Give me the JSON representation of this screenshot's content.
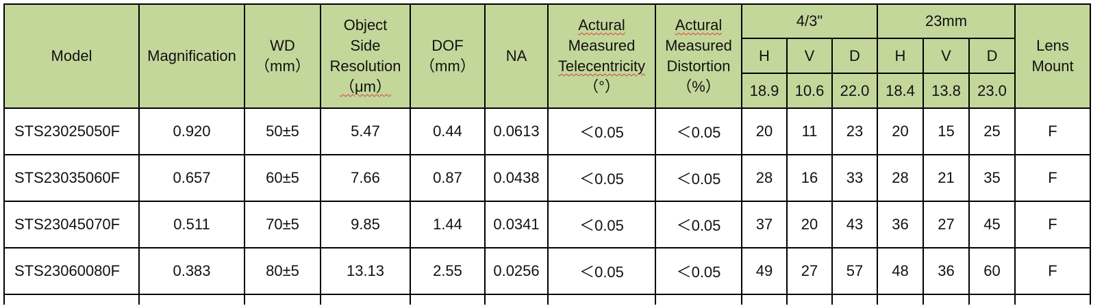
{
  "headers": {
    "model": "Model",
    "magnification": "Magnification",
    "wd": [
      "WD",
      "（mm）"
    ],
    "resolution": [
      "Object",
      "Side",
      "Resolution",
      "（μm）"
    ],
    "dof": [
      "DOF",
      "（mm）"
    ],
    "na": "NA",
    "telecentricity": [
      "Actural",
      "Measured",
      "Telecentricity",
      "（°）"
    ],
    "distortion": [
      "Actural",
      "Measured",
      "Distortion",
      "（%）"
    ],
    "group_43": "4/3\"",
    "group_23mm": "23mm",
    "lens_mount": [
      "Lens",
      "Mount"
    ],
    "sub_43": {
      "h": "H",
      "v": "V",
      "d": "D",
      "h_val": "18.9",
      "v_val": "10.6",
      "d_val": "22.0"
    },
    "sub_23mm": {
      "h": "H",
      "v": "V",
      "d": "D",
      "h_val": "18.4",
      "v_val": "13.8",
      "d_val": "23.0"
    }
  },
  "rows": [
    {
      "model": "STS23025050F",
      "magnification": "0.920",
      "wd": "50±5",
      "resolution": "5.47",
      "dof": "0.44",
      "na": "0.0613",
      "telecentricity": "＜0.05",
      "distortion": "＜0.05",
      "h43": "20",
      "v43": "11",
      "d43": "23",
      "h23": "20",
      "v23": "15",
      "d23": "25",
      "mount": "F"
    },
    {
      "model": "STS23035060F",
      "magnification": "0.657",
      "wd": "60±5",
      "resolution": "7.66",
      "dof": "0.87",
      "na": "0.0438",
      "telecentricity": "＜0.05",
      "distortion": "＜0.05",
      "h43": "28",
      "v43": "16",
      "d43": "33",
      "h23": "28",
      "v23": "21",
      "d23": "35",
      "mount": "F"
    },
    {
      "model": "STS23045070F",
      "magnification": "0.511",
      "wd": "70±5",
      "resolution": "9.85",
      "dof": "1.44",
      "na": "0.0341",
      "telecentricity": "＜0.05",
      "distortion": "＜0.05",
      "h43": "37",
      "v43": "20",
      "d43": "43",
      "h23": "36",
      "v23": "27",
      "d23": "45",
      "mount": "F"
    },
    {
      "model": "STS23060080F",
      "magnification": "0.383",
      "wd": "80±5",
      "resolution": "13.13",
      "dof": "2.55",
      "na": "0.0256",
      "telecentricity": "＜0.05",
      "distortion": "＜0.05",
      "h43": "49",
      "v43": "27",
      "d43": "57",
      "h23": "48",
      "v23": "36",
      "d23": "60",
      "mount": "F"
    }
  ],
  "colors": {
    "header_bg": "#c4d79b",
    "border": "#000000",
    "spellcheck_underline": "#d83a3a"
  }
}
